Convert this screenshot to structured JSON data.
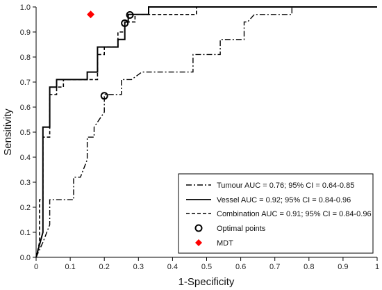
{
  "chart_data": {
    "type": "line",
    "xlabel": "1-Specificity",
    "ylabel": "Sensitivity",
    "xlim": [
      0,
      1
    ],
    "ylim": [
      0,
      1
    ],
    "x_ticks": [
      "0",
      "0.1",
      "0.2",
      "0.3",
      "0.4",
      "0.5",
      "0.6",
      "0.7",
      "0.8",
      "0.9",
      "1"
    ],
    "y_ticks": [
      "0.0",
      "0.1",
      "0.2",
      "0.3",
      "0.4",
      "0.5",
      "0.6",
      "0.7",
      "0.8",
      "0.9",
      "1.0"
    ],
    "grid": false,
    "legend_position": "bottom-right",
    "series": [
      {
        "name": "Tumour AUC = 0.76; 95% CI = 0.64-0.85",
        "style": "dash-dot",
        "color": "#000000",
        "points": [
          [
            0,
            0
          ],
          [
            0.02,
            0.06
          ],
          [
            0.04,
            0.13
          ],
          [
            0.04,
            0.23
          ],
          [
            0.11,
            0.23
          ],
          [
            0.11,
            0.32
          ],
          [
            0.13,
            0.32
          ],
          [
            0.15,
            0.39
          ],
          [
            0.15,
            0.48
          ],
          [
            0.17,
            0.48
          ],
          [
            0.17,
            0.52
          ],
          [
            0.2,
            0.58
          ],
          [
            0.2,
            0.65
          ],
          [
            0.25,
            0.65
          ],
          [
            0.25,
            0.71
          ],
          [
            0.28,
            0.71
          ],
          [
            0.31,
            0.74
          ],
          [
            0.46,
            0.74
          ],
          [
            0.46,
            0.81
          ],
          [
            0.54,
            0.81
          ],
          [
            0.54,
            0.87
          ],
          [
            0.61,
            0.87
          ],
          [
            0.61,
            0.94
          ],
          [
            0.62,
            0.94
          ],
          [
            0.64,
            0.97
          ],
          [
            0.75,
            0.97
          ],
          [
            0.75,
            1.0
          ],
          [
            1.0,
            1.0
          ]
        ]
      },
      {
        "name": "Vessel AUC = 0.92; 95% CI = 0.84-0.96",
        "style": "solid",
        "color": "#000000",
        "points": [
          [
            0,
            0
          ],
          [
            0.02,
            0.1
          ],
          [
            0.02,
            0.52
          ],
          [
            0.04,
            0.52
          ],
          [
            0.04,
            0.68
          ],
          [
            0.06,
            0.68
          ],
          [
            0.06,
            0.71
          ],
          [
            0.15,
            0.71
          ],
          [
            0.15,
            0.74
          ],
          [
            0.18,
            0.74
          ],
          [
            0.18,
            0.84
          ],
          [
            0.24,
            0.84
          ],
          [
            0.24,
            0.87
          ],
          [
            0.26,
            0.87
          ],
          [
            0.26,
            0.94
          ],
          [
            0.27,
            0.94
          ],
          [
            0.27,
            0.97
          ],
          [
            0.33,
            0.97
          ],
          [
            0.33,
            1.0
          ],
          [
            1.0,
            1.0
          ]
        ]
      },
      {
        "name": "Combination AUC = 0.91; 95% CI = 0.84-0.96",
        "style": "dashed",
        "color": "#000000",
        "points": [
          [
            0,
            0
          ],
          [
            0.01,
            0.06
          ],
          [
            0.01,
            0.23
          ],
          [
            0.02,
            0.23
          ],
          [
            0.02,
            0.48
          ],
          [
            0.04,
            0.48
          ],
          [
            0.04,
            0.65
          ],
          [
            0.06,
            0.65
          ],
          [
            0.06,
            0.68
          ],
          [
            0.08,
            0.68
          ],
          [
            0.08,
            0.71
          ],
          [
            0.15,
            0.71
          ],
          [
            0.18,
            0.71
          ],
          [
            0.18,
            0.81
          ],
          [
            0.2,
            0.81
          ],
          [
            0.2,
            0.84
          ],
          [
            0.24,
            0.84
          ],
          [
            0.24,
            0.9
          ],
          [
            0.26,
            0.9
          ],
          [
            0.26,
            0.94
          ],
          [
            0.29,
            0.94
          ],
          [
            0.29,
            0.97
          ],
          [
            0.47,
            0.97
          ],
          [
            0.47,
            1.0
          ],
          [
            1.0,
            1.0
          ]
        ]
      }
    ],
    "optimal_points": {
      "name": "Optimal points",
      "marker": "open-circle",
      "points": [
        [
          0.2,
          0.645
        ],
        [
          0.26,
          0.935
        ],
        [
          0.275,
          0.968
        ]
      ]
    },
    "mdt": {
      "name": "MDT",
      "marker": "diamond",
      "color": "#ff0000",
      "points": [
        [
          0.16,
          0.97
        ]
      ]
    }
  }
}
